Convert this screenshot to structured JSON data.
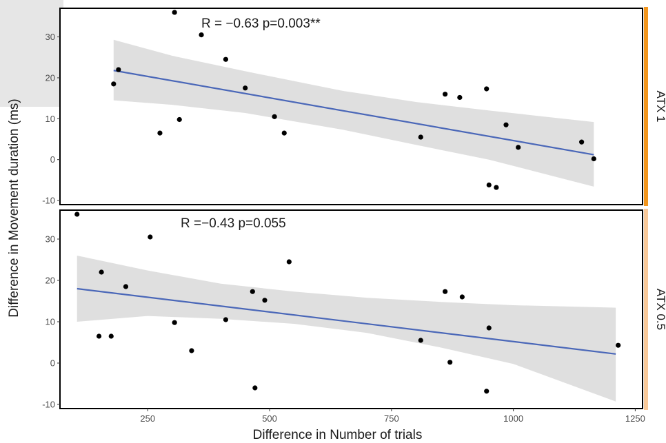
{
  "chart_data": {
    "type": "scatter",
    "xlabel": "Difference in Number of trials",
    "ylabel": "Difference in Movement duration (ms)",
    "xlim": [
      70,
      1265
    ],
    "xticks": [
      250,
      500,
      750,
      1000,
      1250
    ],
    "yticks": [
      -10,
      0,
      10,
      20,
      30
    ],
    "grid": false,
    "colors": {
      "points": "#000000",
      "fit_line": "#4a67b8",
      "confidence_band": "#d9d9d9",
      "panel_border": "#000000"
    },
    "panels": [
      {
        "strip_label": "ATX 1",
        "strip_color": "#f2961e",
        "annotation": "R = −0.63 p=0.003**",
        "ylim": [
          -11,
          37
        ],
        "points": [
          {
            "x": 180,
            "y": 18.5
          },
          {
            "x": 190,
            "y": 22
          },
          {
            "x": 275,
            "y": 6.5
          },
          {
            "x": 305,
            "y": 36
          },
          {
            "x": 315,
            "y": 9.8
          },
          {
            "x": 360,
            "y": 30.5
          },
          {
            "x": 410,
            "y": 24.5
          },
          {
            "x": 450,
            "y": 17.5
          },
          {
            "x": 510,
            "y": 10.5
          },
          {
            "x": 530,
            "y": 6.5
          },
          {
            "x": 810,
            "y": 5.5
          },
          {
            "x": 860,
            "y": 16
          },
          {
            "x": 890,
            "y": 15.2
          },
          {
            "x": 945,
            "y": 17.3
          },
          {
            "x": 950,
            "y": -6.2
          },
          {
            "x": 965,
            "y": -6.8
          },
          {
            "x": 985,
            "y": 8.5
          },
          {
            "x": 1010,
            "y": 3
          },
          {
            "x": 1140,
            "y": 4.3
          },
          {
            "x": 1165,
            "y": 0.2
          }
        ],
        "fit": {
          "x": [
            180,
            1165
          ],
          "y": [
            21.8,
            1.2
          ]
        },
        "band": {
          "x": [
            180,
            300,
            450,
            650,
            800,
            950,
            1165
          ],
          "upper": [
            29.3,
            25.4,
            21.6,
            16.8,
            14.1,
            12.0,
            9.2
          ],
          "lower": [
            14.5,
            13.4,
            11.4,
            7.3,
            3.6,
            0.0,
            -6.6
          ]
        }
      },
      {
        "strip_label": "ATX 0.5",
        "strip_color": "#f8c99a",
        "annotation": "R =−0.43 p=0.055",
        "ylim": [
          -11,
          37
        ],
        "points": [
          {
            "x": 105,
            "y": 36
          },
          {
            "x": 150,
            "y": 6.5
          },
          {
            "x": 155,
            "y": 22
          },
          {
            "x": 175,
            "y": 6.5
          },
          {
            "x": 205,
            "y": 18.5
          },
          {
            "x": 255,
            "y": 30.5
          },
          {
            "x": 305,
            "y": 9.8
          },
          {
            "x": 340,
            "y": 3
          },
          {
            "x": 410,
            "y": 10.5
          },
          {
            "x": 465,
            "y": 17.3
          },
          {
            "x": 470,
            "y": -6
          },
          {
            "x": 490,
            "y": 15.2
          },
          {
            "x": 540,
            "y": 24.5
          },
          {
            "x": 810,
            "y": 5.5
          },
          {
            "x": 860,
            "y": 17.3
          },
          {
            "x": 870,
            "y": 0.2
          },
          {
            "x": 895,
            "y": 16
          },
          {
            "x": 945,
            "y": -6.8
          },
          {
            "x": 950,
            "y": 8.5
          },
          {
            "x": 1215,
            "y": 4.3
          }
        ],
        "fit": {
          "x": [
            105,
            1210
          ],
          "y": [
            18.0,
            2.2
          ]
        },
        "band": {
          "x": [
            105,
            250,
            400,
            550,
            700,
            850,
            1000,
            1210
          ],
          "upper": [
            26.0,
            22.4,
            19.2,
            17.3,
            15.8,
            14.8,
            14.0,
            13.4
          ],
          "lower": [
            10.0,
            11.4,
            10.7,
            9.5,
            7.3,
            3.8,
            -0.2,
            -9.3
          ]
        }
      }
    ]
  }
}
